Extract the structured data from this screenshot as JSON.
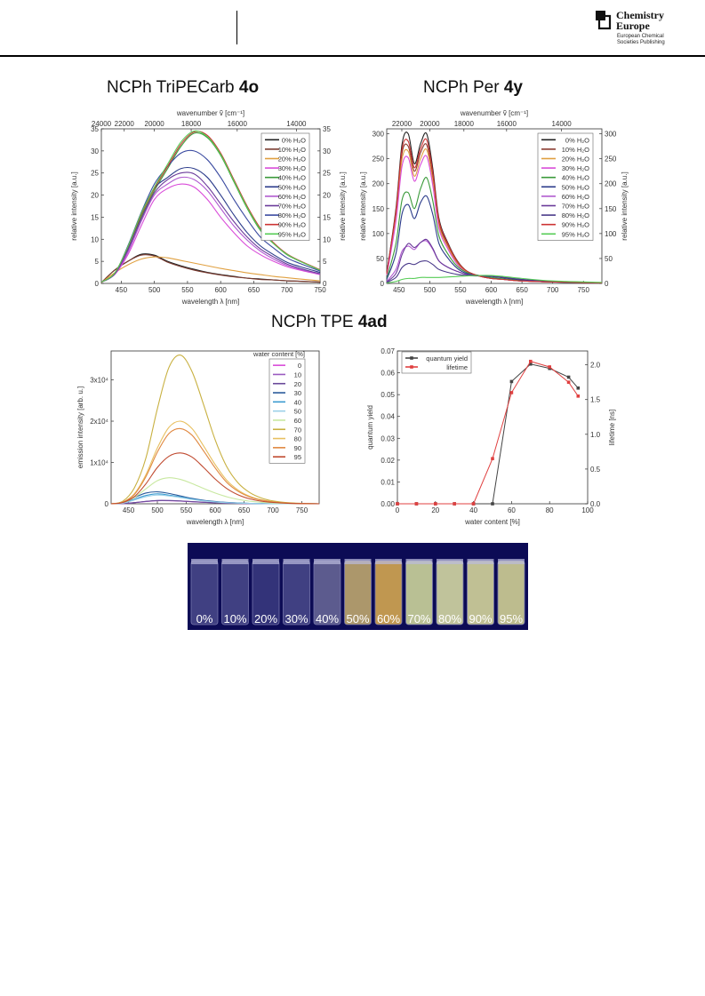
{
  "header": {
    "logo_title_line1": "Chemistry",
    "logo_title_line2": "Europe",
    "logo_sub_line1": "European Chemical",
    "logo_sub_line2": "Societies Publishing"
  },
  "headings": {
    "h1_prefix": "NCPh TriPECarb ",
    "h1_bold": "4o",
    "h2_prefix": "NCPh Per ",
    "h2_bold": "4y",
    "h3_prefix": "NCPh TPE ",
    "h3_bold": "4ad"
  },
  "chart_data": [
    {
      "type": "line",
      "xlabel": "wavelength λ [nm]",
      "ylabel": "relative intensity [a.u.]",
      "ylabel_right": "relative intensity [a.u.]",
      "top_axis_label": "wavenumber ṽ [cm⁻¹]",
      "xlim": [
        420,
        750
      ],
      "ylim": [
        0,
        35
      ],
      "x_ticks": [
        450,
        500,
        550,
        600,
        650,
        700,
        750
      ],
      "y_ticks": [
        0,
        5,
        10,
        15,
        20,
        25,
        30,
        35
      ],
      "top_ticks": [
        "24000",
        "22000",
        "20000",
        "18000",
        "16000",
        "14000"
      ],
      "legend_position": "top-right",
      "grid": false,
      "x": [
        420,
        440,
        460,
        480,
        500,
        520,
        540,
        560,
        580,
        600,
        620,
        640,
        660,
        680,
        700,
        720,
        750
      ],
      "series": [
        {
          "name": "0% H₂O",
          "color": "#222222",
          "values": [
            0.2,
            3.0,
            5.0,
            6.6,
            6.4,
            5.0,
            4.0,
            3.2,
            2.5,
            2.0,
            1.6,
            1.2,
            1.0,
            0.8,
            0.6,
            0.5,
            0.3
          ]
        },
        {
          "name": "10% H₂O",
          "color": "#7b3b30",
          "values": [
            0.2,
            3.0,
            5.0,
            6.4,
            6.2,
            4.8,
            3.8,
            3.0,
            2.4,
            1.9,
            1.5,
            1.2,
            0.9,
            0.8,
            0.6,
            0.5,
            0.3
          ]
        },
        {
          "name": "20% H₂O",
          "color": "#e0a040",
          "values": [
            0.2,
            2.4,
            4.2,
            5.5,
            6.0,
            5.8,
            5.2,
            4.6,
            4.0,
            3.4,
            2.9,
            2.4,
            2.0,
            1.6,
            1.3,
            1.0,
            0.6
          ]
        },
        {
          "name": "30% H₂O",
          "color": "#d94bd9",
          "values": [
            0.3,
            2.0,
            6.5,
            13.0,
            19.0,
            21.5,
            22.5,
            21.8,
            19.0,
            15.0,
            11.5,
            8.5,
            6.5,
            5.0,
            3.8,
            3.0,
            2.0
          ]
        },
        {
          "name": "40% H₂O",
          "color": "#3a9a3a",
          "values": [
            0.3,
            2.2,
            8.0,
            15.0,
            21.0,
            26.0,
            31.0,
            34.0,
            33.0,
            29.0,
            23.0,
            17.0,
            12.0,
            9.0,
            6.5,
            5.0,
            3.0
          ]
        },
        {
          "name": "50% H₂O",
          "color": "#2a3a8a",
          "values": [
            0.3,
            2.2,
            8.0,
            15.5,
            21.5,
            24.0,
            26.0,
            26.0,
            24.0,
            20.0,
            15.5,
            11.5,
            8.5,
            6.5,
            4.8,
            3.8,
            2.5
          ]
        },
        {
          "name": "60% H₂O",
          "color": "#b05ad0",
          "values": [
            0.3,
            2.1,
            7.0,
            14.0,
            20.0,
            22.5,
            24.0,
            23.5,
            21.0,
            17.0,
            13.0,
            9.8,
            7.3,
            5.5,
            4.1,
            3.2,
            2.1
          ]
        },
        {
          "name": "70% H₂O",
          "color": "#6a3a9a",
          "values": [
            0.3,
            2.1,
            7.5,
            14.5,
            20.5,
            23.5,
            25.0,
            24.8,
            22.0,
            18.0,
            14.0,
            10.5,
            7.8,
            6.0,
            4.4,
            3.4,
            2.2
          ]
        },
        {
          "name": "80% H₂O",
          "color": "#3a4aa0",
          "values": [
            0.3,
            2.2,
            8.5,
            16.0,
            22.5,
            26.5,
            29.5,
            30.0,
            28.0,
            24.0,
            19.0,
            14.5,
            10.5,
            8.0,
            5.8,
            4.5,
            2.8
          ]
        },
        {
          "name": "90% H₂O",
          "color": "#cc3333",
          "values": [
            0.3,
            2.3,
            8.2,
            15.5,
            21.5,
            26.5,
            31.5,
            34.3,
            33.5,
            29.5,
            23.5,
            17.5,
            12.5,
            9.2,
            6.7,
            5.1,
            3.1
          ]
        },
        {
          "name": "95% H₂O",
          "color": "#55cc55",
          "values": [
            0.3,
            2.3,
            8.3,
            15.8,
            21.8,
            27.0,
            32.0,
            34.5,
            33.2,
            29.2,
            23.2,
            17.2,
            12.2,
            9.0,
            6.6,
            5.0,
            3.0
          ]
        }
      ]
    },
    {
      "type": "line",
      "xlabel": "wavelength λ [nm]",
      "ylabel": "relative intensity [a.u.]",
      "ylabel_right": "relative intensity [a.u.]",
      "top_axis_label": "wavenumber ṽ [cm⁻¹]",
      "xlim": [
        430,
        780
      ],
      "ylim": [
        0,
        310
      ],
      "x_ticks": [
        450,
        500,
        550,
        600,
        650,
        700,
        750
      ],
      "y_ticks": [
        0,
        50,
        100,
        150,
        200,
        250,
        300
      ],
      "top_ticks": [
        "22000",
        "20000",
        "18000",
        "16000",
        "14000"
      ],
      "legend_position": "top-right",
      "grid": false,
      "x": [
        430,
        445,
        455,
        465,
        475,
        485,
        495,
        505,
        515,
        530,
        545,
        560,
        580,
        600,
        620,
        650,
        700,
        780
      ],
      "series": [
        {
          "name": "0% H₂O",
          "color": "#222222",
          "values": [
            20,
            150,
            280,
            300,
            240,
            280,
            300,
            230,
            130,
            80,
            45,
            25,
            15,
            10,
            8,
            5,
            3,
            1
          ]
        },
        {
          "name": "10% H₂O",
          "color": "#8b3a30",
          "values": [
            18,
            140,
            262,
            275,
            225,
            262,
            278,
            215,
            122,
            75,
            42,
            24,
            15,
            10,
            8,
            5,
            3,
            1
          ]
        },
        {
          "name": "20% H₂O",
          "color": "#e0a040",
          "values": [
            18,
            135,
            250,
            265,
            215,
            250,
            268,
            205,
            116,
            72,
            40,
            23,
            15,
            10,
            8,
            5,
            3,
            1
          ]
        },
        {
          "name": "30% H₂O",
          "color": "#d94bd9",
          "values": [
            16,
            125,
            236,
            252,
            205,
            238,
            255,
            196,
            110,
            68,
            38,
            22,
            15,
            10,
            8,
            5,
            3,
            1
          ]
        },
        {
          "name": "40% H₂O",
          "color": "#3a9a3a",
          "values": [
            10,
            80,
            168,
            182,
            150,
            190,
            212,
            165,
            95,
            58,
            34,
            22,
            16,
            12,
            9,
            6,
            3,
            1
          ]
        },
        {
          "name": "50% H₂O",
          "color": "#2a3a8a",
          "values": [
            8,
            60,
            140,
            158,
            130,
            162,
            175,
            138,
            80,
            50,
            30,
            20,
            16,
            14,
            11,
            7,
            3,
            1
          ]
        },
        {
          "name": "60% H₂O",
          "color": "#b05ad0",
          "values": [
            4,
            28,
            65,
            75,
            68,
            82,
            85,
            68,
            45,
            32,
            24,
            18,
            16,
            15,
            12,
            8,
            4,
            1
          ]
        },
        {
          "name": "70% H₂O",
          "color": "#6a3a9a",
          "values": [
            3,
            20,
            58,
            80,
            72,
            82,
            88,
            70,
            45,
            32,
            24,
            18,
            16,
            15,
            12,
            8,
            4,
            1
          ]
        },
        {
          "name": "80% H₂O",
          "color": "#4a3a8a",
          "values": [
            2,
            12,
            32,
            40,
            38,
            44,
            45,
            38,
            28,
            22,
            18,
            16,
            15,
            15,
            12,
            8,
            4,
            1
          ]
        },
        {
          "name": "90% H₂O",
          "color": "#cc3333",
          "values": [
            20,
            145,
            270,
            285,
            232,
            270,
            288,
            222,
            126,
            78,
            44,
            25,
            15,
            10,
            8,
            5,
            3,
            1
          ]
        },
        {
          "name": "95% H₂O",
          "color": "#55cc55",
          "values": [
            1,
            4,
            8,
            10,
            10,
            12,
            12,
            12,
            12,
            13,
            14,
            15,
            16,
            16,
            14,
            10,
            5,
            2
          ]
        }
      ]
    },
    {
      "type": "line",
      "xlabel": "wavelength λ [nm]",
      "ylabel": "emission intensity [arb. u.]",
      "legend_title": "water content [%]",
      "xlim": [
        420,
        780
      ],
      "ylim": [
        0,
        37000
      ],
      "x_ticks": [
        450,
        500,
        550,
        600,
        650,
        700,
        750
      ],
      "y_tick_labels": [
        "0",
        "1x10⁴",
        "2x10⁴",
        "3x10⁴"
      ],
      "y_ticks": [
        0,
        10000,
        20000,
        30000
      ],
      "legend_position": "top-right",
      "grid": false,
      "x": [
        420,
        440,
        460,
        480,
        500,
        520,
        540,
        560,
        580,
        600,
        620,
        640,
        660,
        680,
        700,
        730,
        760,
        780
      ],
      "series": [
        {
          "name": "0",
          "color": "#d94bd9",
          "values": [
            0,
            50,
            250,
            550,
            750,
            750,
            650,
            500,
            350,
            250,
            160,
            100,
            60,
            40,
            25,
            10,
            5,
            0
          ]
        },
        {
          "name": "10",
          "color": "#9a5ac0",
          "values": [
            0,
            50,
            260,
            560,
            760,
            760,
            660,
            510,
            360,
            255,
            165,
            105,
            62,
            42,
            26,
            10,
            5,
            0
          ]
        },
        {
          "name": "20",
          "color": "#6a4a9a",
          "values": [
            0,
            60,
            280,
            590,
            800,
            790,
            680,
            530,
            370,
            265,
            170,
            110,
            65,
            44,
            27,
            11,
            5,
            0
          ]
        },
        {
          "name": "30",
          "color": "#2a5a9a",
          "values": [
            0,
            300,
            1500,
            2600,
            2900,
            2500,
            1900,
            1300,
            850,
            550,
            330,
            200,
            110,
            70,
            40,
            15,
            6,
            0
          ]
        },
        {
          "name": "40",
          "color": "#3a9ad0",
          "values": [
            0,
            200,
            1100,
            2000,
            2400,
            2100,
            1650,
            1150,
            750,
            480,
            290,
            170,
            95,
            60,
            35,
            13,
            5,
            0
          ]
        },
        {
          "name": "50",
          "color": "#9ad0e8",
          "values": [
            0,
            150,
            900,
            1700,
            2100,
            1900,
            1500,
            1050,
            700,
            450,
            270,
            160,
            90,
            55,
            33,
            12,
            5,
            0
          ]
        },
        {
          "name": "60",
          "color": "#c8e8a0",
          "values": [
            0,
            300,
            1500,
            3600,
            5600,
            6300,
            5900,
            4900,
            3700,
            2600,
            1700,
            1050,
            620,
            360,
            200,
            70,
            25,
            0
          ]
        },
        {
          "name": "70",
          "color": "#c8b040",
          "values": [
            0,
            600,
            3800,
            11000,
            23000,
            33000,
            36000,
            32000,
            24000,
            15500,
            9000,
            5000,
            2700,
            1400,
            700,
            220,
            60,
            0
          ]
        },
        {
          "name": "80",
          "color": "#e8c060",
          "values": [
            0,
            400,
            2400,
            7000,
            13500,
            18500,
            20000,
            18200,
            14000,
            9500,
            5700,
            3300,
            1800,
            950,
            480,
            150,
            40,
            0
          ]
        },
        {
          "name": "90",
          "color": "#e08840",
          "values": [
            0,
            380,
            2200,
            6500,
            12500,
            17000,
            18200,
            16600,
            12800,
            8700,
            5200,
            3000,
            1650,
            870,
            440,
            140,
            38,
            0
          ]
        },
        {
          "name": "95",
          "color": "#c04a30",
          "values": [
            0,
            300,
            1700,
            4800,
            8800,
            11500,
            12300,
            11300,
            8800,
            6000,
            3700,
            2150,
            1180,
            620,
            320,
            100,
            28,
            0
          ]
        }
      ]
    },
    {
      "type": "line",
      "xlabel": "water content [%]",
      "ylabel": "quantum yield",
      "ylabel_right": "lifetime [ns]",
      "xlim": [
        0,
        100
      ],
      "ylim": [
        0,
        0.07
      ],
      "ylim_right": [
        0,
        2.2
      ],
      "x_ticks": [
        0,
        20,
        40,
        60,
        80,
        100
      ],
      "y_ticks": [
        0.0,
        0.01,
        0.02,
        0.03,
        0.04,
        0.05,
        0.06,
        0.07
      ],
      "y_ticks_right": [
        0.0,
        0.5,
        1.0,
        1.5,
        2.0
      ],
      "legend_position": "top-left",
      "grid": false,
      "series": [
        {
          "name": "quantum yield",
          "color": "#444444",
          "axis": "left",
          "x": [
            0,
            10,
            20,
            30,
            40,
            50,
            60,
            70,
            80,
            90,
            95
          ],
          "values": [
            0.0,
            0.0,
            0.0,
            0.0,
            0.0,
            0.0,
            0.056,
            0.064,
            0.062,
            0.058,
            0.053
          ]
        },
        {
          "name": "lifetime",
          "color": "#e04040",
          "axis": "right",
          "x": [
            0,
            10,
            20,
            30,
            40,
            50,
            60,
            70,
            80,
            90,
            95
          ],
          "values": [
            0.0,
            0.0,
            0.0,
            0.0,
            0.0,
            0.65,
            1.6,
            2.05,
            1.97,
            1.75,
            1.55
          ]
        }
      ]
    }
  ],
  "photo": {
    "labels": [
      "0%",
      "10%",
      "20%",
      "30%",
      "40%",
      "50%",
      "60%",
      "70%",
      "80%",
      "90%",
      "95%"
    ],
    "vial_colors": [
      "#4a4a8a",
      "#4a4a8a",
      "#3a3a80",
      "#4a4a8a",
      "#6a6a98",
      "#c8b070",
      "#e0b050",
      "#d8e0a0",
      "#e0e4a8",
      "#e0e0a0",
      "#dcdc98"
    ]
  }
}
